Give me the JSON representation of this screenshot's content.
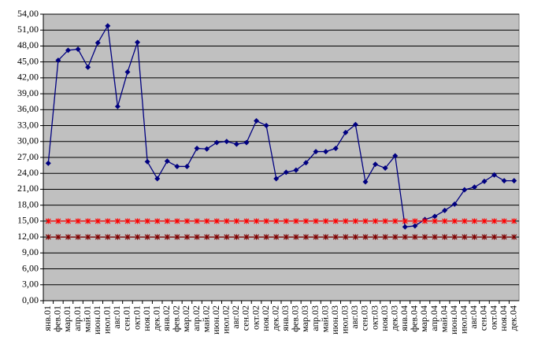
{
  "chart_data": {
    "type": "line",
    "categories": [
      "янв.01",
      "фев.01",
      "мар.01",
      "апр.01",
      "май.01",
      "июн.01",
      "июл.01",
      "авг.01",
      "сен.01",
      "окт.01",
      "ноя.01",
      "дек.01",
      "янв.02",
      "фев.02",
      "мар.02",
      "апр.02",
      "май.02",
      "июн.02",
      "июл.02",
      "авг.02",
      "сен.02",
      "окт.02",
      "ноя.02",
      "дек.02",
      "янв.03",
      "фев.03",
      "мар.03",
      "апр.03",
      "май.03",
      "июн.03",
      "июл.03",
      "авг.03",
      "сен.03",
      "окт.03",
      "ноя.03",
      "дек.03",
      "янв.04",
      "фев.04",
      "мар.04",
      "апр.04",
      "май.04",
      "июн.04",
      "июл.04",
      "авг.04",
      "сен.04",
      "окт.04",
      "ноя.04",
      "дек.04"
    ],
    "series": [
      {
        "color": "#000080",
        "marker": "diamond",
        "values": [
          25.9,
          45.3,
          47.2,
          47.4,
          44.0,
          48.6,
          51.8,
          36.6,
          43.1,
          48.7,
          26.2,
          23.0,
          26.3,
          25.3,
          25.3,
          28.7,
          28.6,
          29.8,
          30.0,
          29.5,
          29.8,
          33.9,
          33.0,
          23.0,
          24.2,
          24.6,
          26.0,
          28.1,
          28.1,
          28.7,
          31.7,
          33.2,
          22.4,
          25.7,
          25.0,
          27.3,
          13.9,
          14.1,
          15.3,
          15.9,
          17.0,
          18.2,
          20.9,
          21.4,
          22.5,
          23.7,
          22.6,
          22.6
        ]
      },
      {
        "color": "#ff0000",
        "marker": "cross",
        "values": [
          15,
          15,
          15,
          15,
          15,
          15,
          15,
          15,
          15,
          15,
          15,
          15,
          15,
          15,
          15,
          15,
          15,
          15,
          15,
          15,
          15,
          15,
          15,
          15,
          15,
          15,
          15,
          15,
          15,
          15,
          15,
          15,
          15,
          15,
          15,
          15,
          15,
          15,
          15,
          15,
          15,
          15,
          15,
          15,
          15,
          15,
          15,
          15
        ]
      },
      {
        "color": "#800000",
        "marker": "cross",
        "values": [
          12,
          12,
          12,
          12,
          12,
          12,
          12,
          12,
          12,
          12,
          12,
          12,
          12,
          12,
          12,
          12,
          12,
          12,
          12,
          12,
          12,
          12,
          12,
          12,
          12,
          12,
          12,
          12,
          12,
          12,
          12,
          12,
          12,
          12,
          12,
          12,
          12,
          12,
          12,
          12,
          12,
          12,
          12,
          12,
          12,
          12,
          12,
          12
        ]
      }
    ],
    "ylim": [
      0,
      54
    ],
    "yticks": [
      {
        "value": 0,
        "label": "0,00"
      },
      {
        "value": 3,
        "label": "3,00"
      },
      {
        "value": 6,
        "label": "6,00"
      },
      {
        "value": 9,
        "label": "9,00"
      },
      {
        "value": 12,
        "label": "12,00"
      },
      {
        "value": 15,
        "label": "15,00"
      },
      {
        "value": 18,
        "label": "18,00"
      },
      {
        "value": 21,
        "label": "21,00"
      },
      {
        "value": 24,
        "label": "24,00"
      },
      {
        "value": 27,
        "label": "27,00"
      },
      {
        "value": 30,
        "label": "30,00"
      },
      {
        "value": 33,
        "label": "33,00"
      },
      {
        "value": 36,
        "label": "36,00"
      },
      {
        "value": 39,
        "label": "39,00"
      },
      {
        "value": 42,
        "label": "42,00"
      },
      {
        "value": 45,
        "label": "45,00"
      },
      {
        "value": 48,
        "label": "48,00"
      },
      {
        "value": 51,
        "label": "51,00"
      },
      {
        "value": 54,
        "label": "54,00"
      }
    ],
    "grid": true,
    "plot_background": "#c0c0c0"
  }
}
